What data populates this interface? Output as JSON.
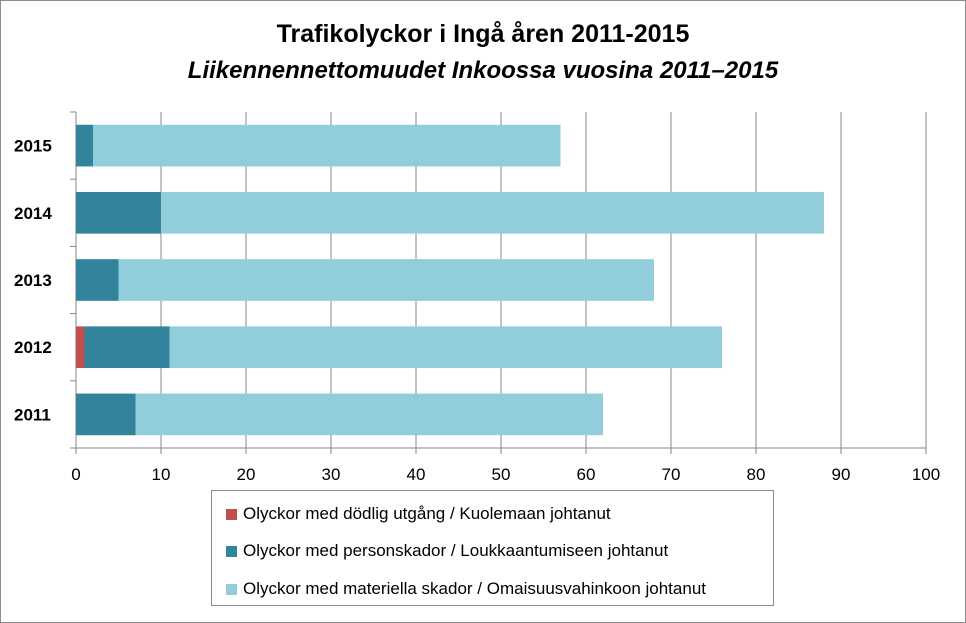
{
  "chart_data": {
    "type": "bar",
    "orientation": "horizontal",
    "stacked": true,
    "title": "Trafikolyckor i Ingå åren 2011-2015",
    "subtitle": "Liikennennettomuudet  Inkoossa vuosina 2011–2015",
    "categories": [
      "2015",
      "2014",
      "2013",
      "2012",
      "2011"
    ],
    "series": [
      {
        "name": "Olyckor med dödlig utgång / Kuolemaan johtanut",
        "color": "#c0504d",
        "values": [
          0,
          0,
          0,
          1,
          0
        ]
      },
      {
        "name": "Olyckor med personskador / Loukkaantumiseen johtanut",
        "color": "#31849b",
        "values": [
          2,
          10,
          5,
          10,
          7
        ]
      },
      {
        "name": "Olyckor med materiella skador / Omaisuusvahinkoon johtanut",
        "color": "#92cddc",
        "values": [
          55,
          78,
          63,
          65,
          55
        ]
      }
    ],
    "xlim": [
      0,
      100
    ],
    "x_ticks": [
      0,
      10,
      20,
      30,
      40,
      50,
      60,
      70,
      80,
      90,
      100
    ],
    "xlabel": "",
    "ylabel": "",
    "grid": true,
    "legend_position": "bottom"
  }
}
